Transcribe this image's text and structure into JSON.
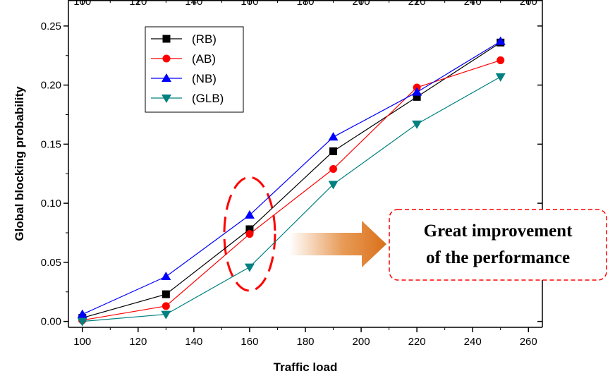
{
  "chart_data": {
    "type": "line",
    "xlabel": "Traffic load",
    "ylabel": "Global blocking probability",
    "xlim": [
      95,
      265
    ],
    "ylim": [
      -0.005,
      0.272
    ],
    "x_ticks": [
      100,
      120,
      140,
      160,
      180,
      200,
      220,
      240,
      260
    ],
    "x_tick_labels": [
      "100",
      "120",
      "140",
      "160",
      "180",
      "200",
      "220",
      "240",
      "260"
    ],
    "y_ticks": [
      0.0,
      0.05,
      0.1,
      0.15,
      0.2,
      0.25
    ],
    "y_tick_labels": [
      "0.00",
      "0.05",
      "0.10",
      "0.15",
      "0.20",
      "0.25"
    ],
    "top_axis": true,
    "grid": false,
    "legend_position": "top-left",
    "x": [
      100,
      130,
      160,
      190,
      220,
      250
    ],
    "series": [
      {
        "name": "(RB)",
        "color": "#000000",
        "marker": "square",
        "values": [
          0.003,
          0.023,
          0.078,
          0.144,
          0.19,
          0.236
        ]
      },
      {
        "name": "(AB)",
        "color": "#ff0000",
        "marker": "circle",
        "values": [
          0.001,
          0.013,
          0.074,
          0.129,
          0.198,
          0.221
        ]
      },
      {
        "name": "(NB)",
        "color": "#0000ff",
        "marker": "triangle-up",
        "values": [
          0.006,
          0.038,
          0.09,
          0.156,
          0.194,
          0.237
        ]
      },
      {
        "name": "(GLB)",
        "color": "#008080",
        "marker": "triangle-down",
        "values": [
          0.0,
          0.006,
          0.046,
          0.116,
          0.167,
          0.207
        ]
      }
    ],
    "annotations": {
      "highlight_x": 160,
      "highlight_range": [
        0.026,
        0.122
      ],
      "text_lines": [
        "Great improvement",
        "of the performance"
      ],
      "highlight_color": "#ff0000",
      "arrow_color": "#e07a20"
    }
  }
}
